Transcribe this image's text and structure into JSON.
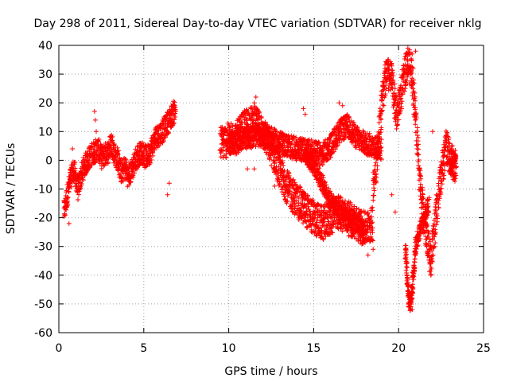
{
  "chart_data": {
    "type": "scatter",
    "title": "Day 298 of 2011, Sidereal Day-to-day VTEC variation (SDTVAR) for receiver nklg",
    "xlabel": "GPS time / hours",
    "ylabel": "SDTVAR / TECUs",
    "xlim": [
      0,
      25
    ],
    "ylim": [
      -60,
      40
    ],
    "x_ticks": [
      0,
      5,
      10,
      15,
      20,
      25
    ],
    "y_ticks": [
      -60,
      -50,
      -40,
      -30,
      -20,
      -10,
      0,
      10,
      20,
      30,
      40
    ],
    "grid": true,
    "marker": "+",
    "marker_color": "#ff0000",
    "series": [
      {
        "name": "SDTVAR",
        "segments": [
          {
            "x": [
              0.3,
              0.5,
              0.7,
              0.9,
              1.1,
              1.3,
              1.5,
              1.7,
              1.9,
              2.1,
              2.3,
              2.5,
              2.7,
              2.9,
              3.1,
              3.3,
              3.5,
              3.7,
              3.9,
              4.1,
              4.3,
              4.5,
              4.7,
              4.9,
              5.1,
              5.3,
              5.5,
              5.7,
              5.9,
              6.1,
              6.3,
              6.5,
              6.7,
              6.9
            ],
            "y": [
              -18,
              -12,
              -6,
              -3,
              -10,
              -6,
              -2,
              0,
              2,
              3,
              4,
              1,
              2,
              3,
              6,
              2,
              0,
              -5,
              -2,
              -6,
              -3,
              0,
              2,
              3,
              1,
              2,
              5,
              8,
              9,
              10,
              12,
              14,
              16,
              18
            ],
            "spread": 4
          },
          {
            "x": [
              9.5,
              10.0,
              10.5,
              11.0,
              11.5,
              12.0,
              12.5,
              13.0,
              13.5,
              14.0,
              14.5,
              15.0,
              15.5,
              16.0,
              16.5,
              17.0,
              17.5,
              18.0,
              18.5
            ],
            "y": [
              6,
              7,
              8,
              12,
              13,
              10,
              4,
              -4,
              -10,
              -14,
              -17,
              -20,
              -22,
              -20,
              -18,
              -20,
              -22,
              -24,
              -22
            ],
            "spread": 6
          },
          {
            "x": [
              10.0,
              11.0,
              12.0,
              13.0,
              14.0,
              15.0,
              15.5,
              16.0,
              16.5,
              17.0,
              17.5,
              18.0,
              18.5,
              19.0
            ],
            "y": [
              6,
              8,
              9,
              6,
              4,
              3,
              2,
              5,
              10,
              12,
              8,
              6,
              5,
              4
            ],
            "spread": 4
          },
          {
            "x": [
              14.5,
              15.0,
              15.5,
              16.0,
              16.5,
              17.0,
              17.5,
              18.0
            ],
            "y": [
              2,
              -2,
              -8,
              -14,
              -18,
              -20,
              -22,
              -24
            ],
            "spread": 3
          },
          {
            "x": [
              18.5,
              18.8,
              19.0,
              19.3,
              19.6,
              19.9,
              20.2,
              20.5,
              20.8,
              21.0,
              21.3,
              21.6,
              21.9,
              22.2,
              22.5,
              22.8,
              23.1,
              23.4
            ],
            "y": [
              -10,
              5,
              20,
              30,
              28,
              15,
              25,
              35,
              30,
              15,
              -10,
              -25,
              -35,
              -20,
              -5,
              5,
              0,
              -3
            ],
            "spread": 6
          },
          {
            "x": [
              20.4,
              20.5,
              20.6,
              20.7,
              20.8,
              20.9,
              21.0,
              21.2,
              21.4,
              21.6,
              21.8
            ],
            "y": [
              -30,
              -40,
              -48,
              -50,
              -45,
              -38,
              -30,
              -25,
              -22,
              -18,
              -15
            ],
            "spread": 3
          },
          {
            "x": [
              23.0,
              23.2,
              23.4
            ],
            "y": [
              -3,
              -2,
              0
            ],
            "spread": 3
          }
        ],
        "outliers": [
          {
            "x": 2.1,
            "y": 17
          },
          {
            "x": 2.15,
            "y": 14
          },
          {
            "x": 2.2,
            "y": 10
          },
          {
            "x": 0.8,
            "y": 4
          },
          {
            "x": 0.6,
            "y": -22
          },
          {
            "x": 11.5,
            "y": 20
          },
          {
            "x": 11.6,
            "y": 22
          },
          {
            "x": 11.1,
            "y": -3
          },
          {
            "x": 11.5,
            "y": -3
          },
          {
            "x": 12.7,
            "y": -9
          },
          {
            "x": 14.4,
            "y": 18
          },
          {
            "x": 14.5,
            "y": 16
          },
          {
            "x": 16.5,
            "y": 20
          },
          {
            "x": 16.7,
            "y": 19
          },
          {
            "x": 6.4,
            "y": -12
          },
          {
            "x": 6.5,
            "y": -8
          },
          {
            "x": 18.2,
            "y": -33
          },
          {
            "x": 18.5,
            "y": -31
          },
          {
            "x": 20.7,
            "y": -51
          },
          {
            "x": 20.8,
            "y": -52
          },
          {
            "x": 19.8,
            "y": -18
          },
          {
            "x": 19.6,
            "y": -12
          },
          {
            "x": 21.0,
            "y": 38
          },
          {
            "x": 20.8,
            "y": 37
          },
          {
            "x": 22.0,
            "y": 10
          },
          {
            "x": 22.5,
            "y": -2
          }
        ]
      }
    ]
  }
}
